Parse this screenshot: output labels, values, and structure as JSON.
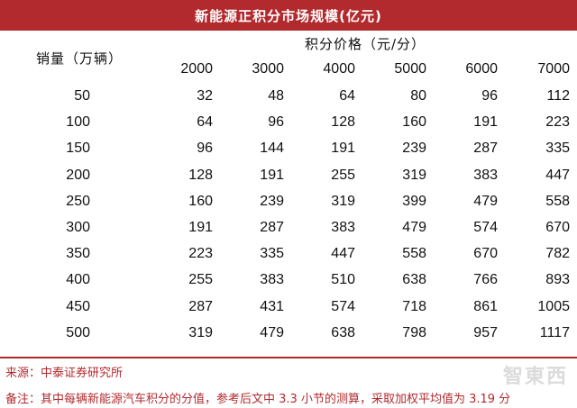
{
  "title": "新能源正积分市场规模(亿元)",
  "row_header": "销量（万辆）",
  "col_header": "积分价格（元/分）",
  "columns": [
    "2000",
    "3000",
    "4000",
    "5000",
    "6000",
    "7000"
  ],
  "rows": [
    {
      "volume": "50",
      "values": [
        "32",
        "48",
        "64",
        "80",
        "96",
        "112"
      ]
    },
    {
      "volume": "100",
      "values": [
        "64",
        "96",
        "128",
        "160",
        "191",
        "223"
      ]
    },
    {
      "volume": "150",
      "values": [
        "96",
        "144",
        "191",
        "239",
        "287",
        "335"
      ]
    },
    {
      "volume": "200",
      "values": [
        "128",
        "191",
        "255",
        "319",
        "383",
        "447"
      ]
    },
    {
      "volume": "250",
      "values": [
        "160",
        "239",
        "319",
        "399",
        "479",
        "558"
      ]
    },
    {
      "volume": "300",
      "values": [
        "191",
        "287",
        "383",
        "479",
        "574",
        "670"
      ]
    },
    {
      "volume": "350",
      "values": [
        "223",
        "335",
        "447",
        "558",
        "670",
        "782"
      ]
    },
    {
      "volume": "400",
      "values": [
        "255",
        "383",
        "510",
        "638",
        "766",
        "893"
      ]
    },
    {
      "volume": "450",
      "values": [
        "287",
        "431",
        "574",
        "718",
        "861",
        "1005"
      ]
    },
    {
      "volume": "500",
      "values": [
        "319",
        "479",
        "638",
        "798",
        "957",
        "1117"
      ]
    }
  ],
  "source": "来源：中泰证券研究所",
  "note": "备注：其中每辆新能源汽车积分的分值，参考后文中 3.3 小节的测算，采取加权平均值为 3.19 分",
  "watermark": "智東西",
  "colors": {
    "accent": "#b22a2e"
  }
}
